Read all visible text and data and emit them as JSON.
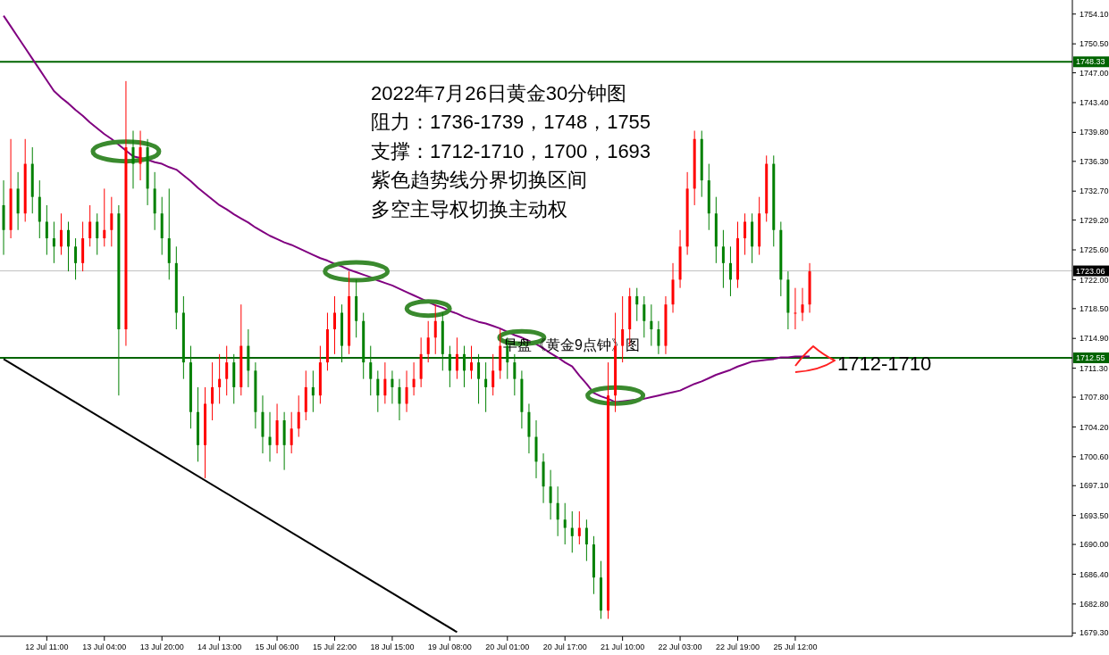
{
  "chart_data": {
    "type": "candlestick",
    "title": "2022年7月26日黄金30分钟图",
    "annotations": [
      "阻力：1736-1739，1748，1755",
      "支撑：1712-1710，1700，1693",
      "紫色趋势线分界切换区间",
      "多空主导权切换主动权",
      "早盘《黄金9点钟》图",
      "1712-1710"
    ],
    "categories": [
      null,
      null,
      null,
      null,
      null,
      null,
      "12 Jul 11:00",
      null,
      null,
      null,
      null,
      null,
      null,
      null,
      "13 Jul 04:00",
      null,
      null,
      null,
      null,
      null,
      null,
      null,
      "13 Jul 20:00",
      null,
      null,
      null,
      null,
      null,
      null,
      null,
      "14 Jul 13:00",
      null,
      null,
      null,
      null,
      null,
      null,
      null,
      "15 Jul 06:00",
      null,
      null,
      null,
      null,
      null,
      null,
      null,
      "15 Jul 22:00",
      null,
      null,
      null,
      null,
      null,
      null,
      null,
      "18 Jul 15:00",
      null,
      null,
      null,
      null,
      null,
      null,
      null,
      "19 Jul 08:00",
      null,
      null,
      null,
      null,
      null,
      null,
      null,
      "20 Jul 01:00",
      null,
      null,
      null,
      null,
      null,
      null,
      null,
      "20 Jul 17:00",
      null,
      null,
      null,
      null,
      null,
      null,
      null,
      "21 Jul 10:00",
      null,
      null,
      null,
      null,
      null,
      null,
      null,
      "22 Jul 03:00",
      null,
      null,
      null,
      null,
      null,
      null,
      null,
      "22 Jul 19:00",
      null,
      null,
      null,
      null,
      null,
      null,
      null,
      "25 Jul 12:00",
      null,
      null,
      null,
      null,
      null,
      null,
      null,
      null,
      null,
      null,
      null,
      null,
      null,
      null,
      null,
      null,
      null,
      null,
      null,
      null,
      null,
      null,
      null,
      null,
      null,
      null,
      null,
      null,
      null,
      null,
      null,
      null,
      null,
      null,
      null,
      null,
      null,
      null
    ],
    "colors": [
      "#008000",
      "#ff0000",
      "#008000",
      "#ff0000",
      "#008000",
      "#008000",
      "#008000",
      "#008000",
      "#ff0000",
      "#008000",
      "#008000",
      "#ff0000",
      "#ff0000",
      "#008000",
      "#ff0000",
      "#ff0000",
      "#008000",
      "#ff0000",
      "#008000",
      "#ff0000",
      "#008000",
      "#008000",
      "#008000",
      "#008000",
      "#008000",
      "#008000",
      "#008000",
      "#008000",
      "#ff0000",
      "#ff0000",
      "#ff0000",
      "#ff0000",
      "#008000",
      "#ff0000",
      "#008000",
      "#008000",
      "#008000",
      "#008000",
      "#ff0000",
      "#008000",
      "#ff0000",
      "#ff0000",
      "#ff0000",
      "#008000",
      "#ff0000",
      "#ff0000",
      "#ff0000",
      "#008000",
      "#ff0000",
      "#008000",
      "#008000",
      "#008000",
      "#008000",
      "#ff0000",
      "#008000",
      "#008000",
      "#ff0000",
      "#ff0000",
      "#ff0000",
      "#ff0000",
      "#ff0000",
      "#008000",
      "#008000",
      "#ff0000",
      "#008000",
      "#ff0000",
      "#008000",
      "#008000",
      "#ff0000",
      "#ff0000",
      "#008000",
      "#008000",
      "#008000",
      "#008000",
      "#008000",
      "#008000",
      "#008000",
      "#008000",
      "#008000",
      "#008000",
      "#ff0000",
      "#008000",
      "#008000",
      "#008000",
      "#ff0000",
      "#ff0000",
      "#ff0000",
      "#ff0000",
      "#008000",
      "#008000",
      "#008000",
      "#008000",
      "#ff0000",
      "#ff0000",
      "#ff0000",
      "#ff0000",
      "#ff0000",
      "#008000",
      "#008000",
      "#008000",
      "#008000",
      "#008000",
      "#ff0000",
      "#ff0000",
      "#008000",
      "#ff0000",
      "#ff0000",
      "#008000",
      "#008000",
      "#008000",
      "#ff0000",
      "#ff0000",
      "#ff0000",
      null,
      null,
      null,
      null,
      null,
      null,
      null,
      null,
      null,
      null,
      null,
      null,
      null,
      null,
      null,
      null,
      null,
      null,
      null,
      null,
      null,
      null,
      null,
      null,
      null,
      null,
      null,
      null,
      null,
      null,
      null,
      null,
      null,
      null,
      null,
      null
    ],
    "ohlc": [
      [
        1731,
        1734,
        1725,
        1728
      ],
      [
        1728,
        1739,
        1727,
        1733
      ],
      [
        1733,
        1735,
        1728,
        1730
      ],
      [
        1730,
        1739,
        1729,
        1736
      ],
      [
        1736,
        1738,
        1730,
        1732
      ],
      [
        1732,
        1734,
        1727,
        1729
      ],
      [
        1729,
        1731,
        1725,
        1727
      ],
      [
        1727,
        1729,
        1724,
        1726
      ],
      [
        1726,
        1730,
        1725,
        1728
      ],
      [
        1728,
        1729,
        1723,
        1726
      ],
      [
        1726,
        1727,
        1722,
        1724
      ],
      [
        1724,
        1729,
        1723,
        1727
      ],
      [
        1727,
        1731,
        1726,
        1729
      ],
      [
        1729,
        1730,
        1725,
        1727
      ],
      [
        1727,
        1733,
        1726,
        1728
      ],
      [
        1728,
        1732,
        1726,
        1730
      ],
      [
        1730,
        1731,
        1708,
        1716
      ],
      [
        1716,
        1746,
        1714,
        1738
      ],
      [
        1738,
        1740,
        1733,
        1736
      ],
      [
        1736,
        1740,
        1734,
        1738
      ],
      [
        1738,
        1739,
        1731,
        1733
      ],
      [
        1733,
        1735,
        1728,
        1730
      ],
      [
        1730,
        1732,
        1725,
        1727
      ],
      [
        1727,
        1733,
        1722,
        1724
      ],
      [
        1724,
        1726,
        1716,
        1718
      ],
      [
        1718,
        1720,
        1710,
        1712
      ],
      [
        1712,
        1714,
        1704,
        1706
      ],
      [
        1706,
        1709,
        1700,
        1702
      ],
      [
        1702,
        1709,
        1698,
        1707
      ],
      [
        1707,
        1712,
        1705,
        1709
      ],
      [
        1709,
        1713,
        1707,
        1710
      ],
      [
        1710,
        1714,
        1708,
        1712
      ],
      [
        1712,
        1713,
        1707,
        1709
      ],
      [
        1709,
        1719,
        1708,
        1714
      ],
      [
        1714,
        1716,
        1709,
        1711
      ],
      [
        1711,
        1712,
        1704,
        1706
      ],
      [
        1706,
        1708,
        1701,
        1703
      ],
      [
        1703,
        1706,
        1700,
        1702
      ],
      [
        1702,
        1707,
        1701,
        1705
      ],
      [
        1705,
        1706,
        1699,
        1702
      ],
      [
        1702,
        1706,
        1701,
        1704
      ],
      [
        1704,
        1708,
        1703,
        1706
      ],
      [
        1706,
        1711,
        1705,
        1709
      ],
      [
        1709,
        1711,
        1706,
        1708
      ],
      [
        1708,
        1714,
        1707,
        1712
      ],
      [
        1712,
        1718,
        1711,
        1716
      ],
      [
        1716,
        1720,
        1713,
        1718
      ],
      [
        1718,
        1719,
        1712,
        1714
      ],
      [
        1714,
        1723,
        1713,
        1720
      ],
      [
        1720,
        1722,
        1715,
        1717
      ],
      [
        1717,
        1718,
        1710,
        1712
      ],
      [
        1712,
        1714,
        1708,
        1710
      ],
      [
        1710,
        1711,
        1706,
        1708
      ],
      [
        1708,
        1712,
        1707,
        1710
      ],
      [
        1710,
        1711,
        1707,
        1709
      ],
      [
        1709,
        1710,
        1705,
        1707
      ],
      [
        1707,
        1711,
        1706,
        1709
      ],
      [
        1709,
        1712,
        1708,
        1710
      ],
      [
        1710,
        1715,
        1709,
        1713
      ],
      [
        1713,
        1717,
        1712,
        1715
      ],
      [
        1715,
        1719,
        1713,
        1717
      ],
      [
        1717,
        1718,
        1711,
        1713
      ],
      [
        1713,
        1714,
        1709,
        1711
      ],
      [
        1711,
        1715,
        1710,
        1713
      ],
      [
        1713,
        1714,
        1709,
        1711
      ],
      [
        1711,
        1714,
        1710,
        1712
      ],
      [
        1712,
        1713,
        1707,
        1710
      ],
      [
        1710,
        1712,
        1706,
        1709
      ],
      [
        1709,
        1713,
        1708,
        1711
      ],
      [
        1711,
        1716,
        1710,
        1714
      ],
      [
        1714,
        1715,
        1710,
        1712
      ],
      [
        1712,
        1713,
        1708,
        1710
      ],
      [
        1710,
        1711,
        1704,
        1706
      ],
      [
        1706,
        1707,
        1701,
        1703
      ],
      [
        1703,
        1705,
        1698,
        1700
      ],
      [
        1700,
        1701,
        1695,
        1697
      ],
      [
        1697,
        1699,
        1693,
        1695
      ],
      [
        1695,
        1697,
        1691,
        1693
      ],
      [
        1693,
        1695,
        1690,
        1692
      ],
      [
        1692,
        1694,
        1689,
        1691
      ],
      [
        1691,
        1694,
        1690,
        1692
      ],
      [
        1692,
        1693,
        1688,
        1690
      ],
      [
        1690,
        1691,
        1684,
        1686
      ],
      [
        1686,
        1688,
        1681,
        1682
      ],
      [
        1682,
        1712,
        1681,
        1708
      ],
      [
        1708,
        1718,
        1706,
        1714
      ],
      [
        1714,
        1720,
        1712,
        1716
      ],
      [
        1716,
        1721,
        1714,
        1720
      ],
      [
        1720,
        1721,
        1717,
        1719
      ],
      [
        1719,
        1720,
        1715,
        1717
      ],
      [
        1717,
        1719,
        1714,
        1716
      ],
      [
        1716,
        1717,
        1713,
        1714
      ],
      [
        1714,
        1720,
        1713,
        1719
      ],
      [
        1719,
        1724,
        1718,
        1722
      ],
      [
        1722,
        1728,
        1721,
        1726
      ],
      [
        1726,
        1735,
        1725,
        1733
      ],
      [
        1733,
        1740,
        1731,
        1739
      ],
      [
        1739,
        1740,
        1732,
        1734
      ],
      [
        1734,
        1736,
        1728,
        1730
      ],
      [
        1730,
        1732,
        1724,
        1726
      ],
      [
        1726,
        1728,
        1721,
        1724
      ],
      [
        1724,
        1726,
        1720,
        1722
      ],
      [
        1722,
        1729,
        1721,
        1727
      ],
      [
        1727,
        1730,
        1725,
        1729
      ],
      [
        1729,
        1730,
        1724,
        1726
      ],
      [
        1726,
        1732,
        1725,
        1730
      ],
      [
        1730,
        1737,
        1729,
        1736
      ],
      [
        1736,
        1737,
        1726,
        1728
      ],
      [
        1728,
        1729,
        1720,
        1722
      ],
      [
        1722,
        1723,
        1716,
        1718
      ],
      [
        1718,
        1721,
        1716,
        1718
      ],
      [
        1718,
        1721,
        1717,
        1719
      ],
      [
        1719,
        1724,
        1718,
        1723
      ],
      null,
      null,
      null,
      null,
      null,
      null,
      null,
      null,
      null,
      null,
      null,
      null,
      null,
      null,
      null,
      null,
      null,
      null,
      null,
      null,
      null,
      null,
      null,
      null,
      null,
      null,
      null,
      null,
      null,
      null,
      null,
      null,
      null,
      null,
      null,
      null
    ],
    "series": [
      {
        "type": "line",
        "color": "#800080",
        "values": [
          1753.9,
          1752.6,
          1751.3,
          1750.0,
          1748.7,
          1747.4,
          1746.1,
          1744.8,
          1744.0,
          1743.3,
          1742.5,
          1741.8,
          1741.0,
          1740.3,
          1739.6,
          1739.0,
          1738.3,
          1737.6,
          1736.9,
          1736.7,
          1736.5,
          1736.2,
          1736.0,
          1735.6,
          1735.3,
          1734.6,
          1733.9,
          1733.1,
          1732.4,
          1731.7,
          1731.0,
          1730.5,
          1729.9,
          1729.4,
          1728.9,
          1728.3,
          1727.8,
          1727.3,
          1726.9,
          1726.5,
          1726.2,
          1725.8,
          1725.4,
          1725.0,
          1724.6,
          1724.3,
          1723.9,
          1723.6,
          1723.2,
          1722.9,
          1722.6,
          1722.3,
          1721.9,
          1721.6,
          1721.3,
          1720.9,
          1720.5,
          1720.1,
          1719.7,
          1719.3,
          1718.9,
          1718.6,
          1718.2,
          1717.9,
          1717.5,
          1717.2,
          1716.9,
          1716.7,
          1716.4,
          1716.1,
          1715.7,
          1715.3,
          1715.0,
          1714.6,
          1714.2,
          1713.7,
          1713.1,
          1712.6,
          1712.0,
          1711.5,
          1710.4,
          1709.4,
          1708.3,
          1707.9,
          1707.6,
          1707.2,
          1707.3,
          1707.4,
          1707.5,
          1707.6,
          1707.8,
          1708.0,
          1708.2,
          1708.4,
          1708.6,
          1709.0,
          1709.4,
          1709.7,
          1710.1,
          1710.5,
          1710.8,
          1711.1,
          1711.5,
          1711.8,
          1712.1,
          1712.2,
          1712.3,
          1712.4,
          1712.6,
          1712.6,
          1712.7,
          1712.7,
          1712.7,
          null,
          null,
          null,
          null,
          null,
          null,
          null,
          null,
          null,
          null,
          null,
          null,
          null,
          null,
          null,
          null,
          null,
          null,
          null,
          null,
          null,
          null,
          null,
          null,
          null,
          null,
          null,
          null,
          null,
          null,
          null,
          null,
          null,
          null,
          null,
          null
        ]
      },
      {
        "type": "line",
        "color": "#000000",
        "values": [
          1712.4,
          null,
          null,
          null,
          null,
          null,
          null,
          null,
          null,
          null,
          null,
          null,
          null,
          null,
          null,
          null,
          null,
          null,
          null,
          null,
          null,
          null,
          null,
          null,
          null,
          null,
          null,
          null,
          null,
          null,
          null,
          null,
          null,
          null,
          null,
          null,
          null,
          null,
          null,
          null,
          null,
          null,
          null,
          null,
          null,
          null,
          null,
          null,
          null,
          null,
          null,
          null,
          null,
          null,
          null,
          null,
          null,
          null,
          null,
          null,
          null,
          null,
          null,
          1679.4,
          null,
          null,
          null,
          null,
          null,
          null,
          null,
          null,
          null,
          null,
          null,
          null,
          null,
          null,
          null,
          null,
          null,
          null,
          null,
          null,
          null,
          null,
          null,
          null,
          null,
          null,
          null,
          null,
          null,
          null,
          null,
          null,
          null,
          null,
          null,
          null,
          null,
          null,
          null,
          null,
          null,
          null,
          null,
          null,
          null,
          null,
          null,
          null,
          null,
          null,
          null,
          null,
          null,
          null,
          null,
          null,
          null,
          null,
          null,
          null,
          null,
          null,
          null,
          null,
          null,
          null,
          null,
          null,
          null,
          null,
          null,
          null,
          null,
          null,
          null,
          null,
          null,
          null,
          null,
          null,
          null,
          null,
          null,
          null,
          null
        ]
      }
    ],
    "ylim": [
      1678.9,
      1755.8
    ],
    "yticks": [
      {
        "value": 1754.1,
        "label": "1754.10"
      },
      {
        "value": 1750.5,
        "label": "1750.50"
      },
      {
        "value": 1747,
        "label": "1747.00"
      },
      {
        "value": 1743.4,
        "label": "1743.40"
      },
      {
        "value": 1739.8,
        "label": "1739.80"
      },
      {
        "value": 1736.3,
        "label": "1736.30"
      },
      {
        "value": 1732.7,
        "label": "1732.70"
      },
      {
        "value": 1729.2,
        "label": "1729.20"
      },
      {
        "value": 1725.6,
        "label": "1725.60"
      },
      {
        "value": 1722,
        "label": "1722.00"
      },
      {
        "value": 1718.5,
        "label": "1718.50"
      },
      {
        "value": 1714.9,
        "label": "1714.90"
      },
      {
        "value": 1711.3,
        "label": "1711.30"
      },
      {
        "value": 1707.8,
        "label": "1707.80"
      },
      {
        "value": 1704.2,
        "label": "1704.20"
      },
      {
        "value": 1700.6,
        "label": "1700.60"
      },
      {
        "value": 1697.1,
        "label": "1697.10"
      },
      {
        "value": 1693.5,
        "label": "1693.50"
      },
      {
        "value": 1690,
        "label": "1690.00"
      },
      {
        "value": 1686.4,
        "label": "1686.40"
      },
      {
        "value": 1682.8,
        "label": "1682.80"
      },
      {
        "value": 1679.3,
        "label": "1679.30"
      }
    ],
    "ref_lines": [
      {
        "axis": "y",
        "value": 1748.33,
        "label": "1748.33",
        "color": "#006400"
      },
      {
        "axis": "y",
        "value": 1723.06,
        "label": "1723.06",
        "color": "#c0c0c0"
      },
      {
        "axis": "y",
        "value": 1712.55,
        "label": "1712.55",
        "color": "#006400"
      }
    ]
  }
}
